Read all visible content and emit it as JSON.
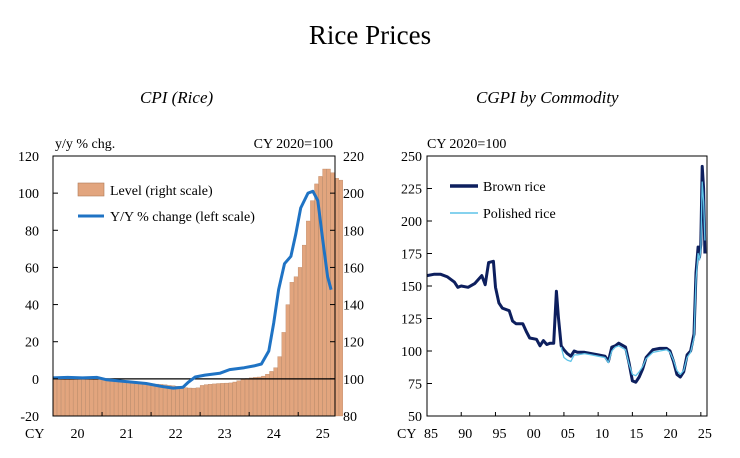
{
  "title": "Rice Prices",
  "chart_data": [
    {
      "type": "bar+line",
      "title": "CPI (Rice)",
      "left_axis_label": "y/y % chg.",
      "right_axis_label": "CY 2020=100",
      "left_ylim": [
        -20,
        120
      ],
      "left_ticks": [
        "120",
        "100",
        "80",
        "60",
        "40",
        "20",
        "0",
        "-20"
      ],
      "right_ylim": [
        80,
        220
      ],
      "right_ticks": [
        "220",
        "200",
        "180",
        "160",
        "140",
        "120",
        "100",
        "80"
      ],
      "x_prefix": "CY",
      "x_ticks": [
        "20",
        "21",
        "22",
        "23",
        "24",
        "25"
      ],
      "x_range": [
        2020.0,
        2025.75
      ],
      "bar_color": "#e2a57e",
      "line_color": "#1f73c4",
      "legend": [
        "Level (right scale)",
        "Y/Y % change (left scale)"
      ],
      "series": [
        {
          "name": "Level (right scale)",
          "axis": "right",
          "start": 2020.0,
          "step": 0.0833,
          "values": [
            100.5,
            100.6,
            100.4,
            100.3,
            100.5,
            100.4,
            100.3,
            100.2,
            100.1,
            99.9,
            99.8,
            99.7,
            99.5,
            99.4,
            99.2,
            99.0,
            98.9,
            98.7,
            98.5,
            98.3,
            98.1,
            97.9,
            97.7,
            97.6,
            97.4,
            97.2,
            97.0,
            96.8,
            96.5,
            96.3,
            96.0,
            95.6,
            95.3,
            95.1,
            95.0,
            95.2,
            96.5,
            96.9,
            97.1,
            97.3,
            97.5,
            97.6,
            97.7,
            97.8,
            98.3,
            99.0,
            99.6,
            100.2,
            100.5,
            100.8,
            101.0,
            101.5,
            102.5,
            104.0,
            106.0,
            112.0,
            125.0,
            140.0,
            152.0,
            155.0,
            160.0,
            172.0,
            185.0,
            196.0,
            205.0,
            209.0,
            213.0,
            213.0,
            211.0,
            208.0,
            207.0
          ]
        },
        {
          "name": "Y/Y % change (left scale)",
          "axis": "left",
          "points": [
            [
              2020.0,
              0.5
            ],
            [
              2020.3,
              0.8
            ],
            [
              2020.6,
              0.5
            ],
            [
              2020.9,
              0.8
            ],
            [
              2021.1,
              -0.5
            ],
            [
              2021.5,
              -1.5
            ],
            [
              2021.9,
              -2.5
            ],
            [
              2022.2,
              -4
            ],
            [
              2022.45,
              -5
            ],
            [
              2022.65,
              -4.5
            ],
            [
              2022.75,
              -2
            ],
            [
              2022.9,
              1
            ],
            [
              2023.1,
              2
            ],
            [
              2023.4,
              3
            ],
            [
              2023.6,
              5
            ],
            [
              2023.9,
              6
            ],
            [
              2024.1,
              7
            ],
            [
              2024.25,
              8
            ],
            [
              2024.4,
              15
            ],
            [
              2024.5,
              30
            ],
            [
              2024.6,
              48
            ],
            [
              2024.72,
              62
            ],
            [
              2024.85,
              66
            ],
            [
              2024.95,
              78
            ],
            [
              2025.05,
              92
            ],
            [
              2025.2,
              100
            ],
            [
              2025.3,
              101
            ],
            [
              2025.4,
              96
            ],
            [
              2025.5,
              75
            ],
            [
              2025.6,
              55
            ],
            [
              2025.67,
              48
            ]
          ]
        }
      ]
    },
    {
      "type": "line",
      "title": "CGPI by Commodity",
      "ylabel": "CY 2020=100",
      "ylim": [
        50,
        250
      ],
      "y_ticks": [
        "250",
        "225",
        "200",
        "175",
        "150",
        "125",
        "100",
        "75",
        "50"
      ],
      "x_prefix": "CY",
      "x_ticks": [
        "85",
        "90",
        "95",
        "00",
        "05",
        "10",
        "15",
        "20",
        "25"
      ],
      "x_range": [
        1985,
        2025.9
      ],
      "legend": [
        "Brown rice",
        "Polished rice"
      ],
      "series": [
        {
          "name": "Brown rice",
          "color": "#0d1f5e",
          "points": [
            [
              1985,
              158
            ],
            [
              1986,
              159
            ],
            [
              1987,
              159
            ],
            [
              1988,
              157
            ],
            [
              1989,
              153
            ],
            [
              1989.5,
              149
            ],
            [
              1990,
              150
            ],
            [
              1991,
              149
            ],
            [
              1992,
              152
            ],
            [
              1993,
              158
            ],
            [
              1993.5,
              151
            ],
            [
              1994,
              168
            ],
            [
              1994.7,
              169
            ],
            [
              1995,
              149
            ],
            [
              1995.5,
              137
            ],
            [
              1996,
              133
            ],
            [
              1997,
              131
            ],
            [
              1997.5,
              123
            ],
            [
              1998,
              121
            ],
            [
              1999,
              121
            ],
            [
              1999.5,
              115
            ],
            [
              2000,
              110
            ],
            [
              2001,
              109
            ],
            [
              2001.5,
              104
            ],
            [
              2002,
              108
            ],
            [
              2002.5,
              105
            ],
            [
              2003,
              106
            ],
            [
              2003.5,
              106
            ],
            [
              2003.9,
              146
            ],
            [
              2004.2,
              126
            ],
            [
              2004.6,
              104
            ],
            [
              2005,
              101
            ],
            [
              2005.5,
              98
            ],
            [
              2006,
              96
            ],
            [
              2006.5,
              100
            ],
            [
              2007,
              99
            ],
            [
              2008,
              99
            ],
            [
              2009,
              98
            ],
            [
              2010,
              97
            ],
            [
              2011,
              96
            ],
            [
              2011.5,
              92
            ],
            [
              2012,
              103
            ],
            [
              2012.5,
              104
            ],
            [
              2013,
              106
            ],
            [
              2014,
              103
            ],
            [
              2014.5,
              91
            ],
            [
              2015,
              77
            ],
            [
              2015.5,
              76
            ],
            [
              2016,
              80
            ],
            [
              2016.5,
              86
            ],
            [
              2017,
              95
            ],
            [
              2018,
              101
            ],
            [
              2019,
              102
            ],
            [
              2020,
              102
            ],
            [
              2020.5,
              100
            ],
            [
              2021,
              92
            ],
            [
              2021.5,
              82
            ],
            [
              2022,
              80
            ],
            [
              2022.5,
              84
            ],
            [
              2023,
              97
            ],
            [
              2023.5,
              100
            ],
            [
              2024,
              113
            ],
            [
              2024.3,
              160
            ],
            [
              2024.6,
              180
            ],
            [
              2024.8,
              172
            ],
            [
              2025,
              182
            ],
            [
              2025.2,
              242
            ],
            [
              2025.4,
              225
            ],
            [
              2025.6,
              175
            ]
          ]
        },
        {
          "name": "Polished rice",
          "color": "#5fc4e8",
          "points": [
            [
              2004.6,
              103
            ],
            [
              2005,
              95
            ],
            [
              2005.5,
              93
            ],
            [
              2006,
              92
            ],
            [
              2006.5,
              97
            ],
            [
              2007,
              97
            ],
            [
              2008,
              98
            ],
            [
              2009,
              97
            ],
            [
              2010,
              96
            ],
            [
              2011,
              95
            ],
            [
              2011.5,
              91
            ],
            [
              2012,
              100
            ],
            [
              2012.5,
              103
            ],
            [
              2013,
              104
            ],
            [
              2014,
              101
            ],
            [
              2014.5,
              90
            ],
            [
              2015,
              82
            ],
            [
              2015.5,
              81
            ],
            [
              2016,
              84
            ],
            [
              2016.5,
              88
            ],
            [
              2017,
              94
            ],
            [
              2018,
              99
            ],
            [
              2019,
              100
            ],
            [
              2020,
              101
            ],
            [
              2020.5,
              99
            ],
            [
              2021,
              93
            ],
            [
              2021.5,
              85
            ],
            [
              2022,
              82
            ],
            [
              2022.5,
              85
            ],
            [
              2023,
              95
            ],
            [
              2023.5,
              99
            ],
            [
              2024,
              110
            ],
            [
              2024.3,
              155
            ],
            [
              2024.6,
              175
            ],
            [
              2024.8,
              170
            ],
            [
              2025,
              178
            ],
            [
              2025.2,
              230
            ],
            [
              2025.4,
              215
            ],
            [
              2025.6,
              185
            ]
          ]
        }
      ]
    }
  ]
}
